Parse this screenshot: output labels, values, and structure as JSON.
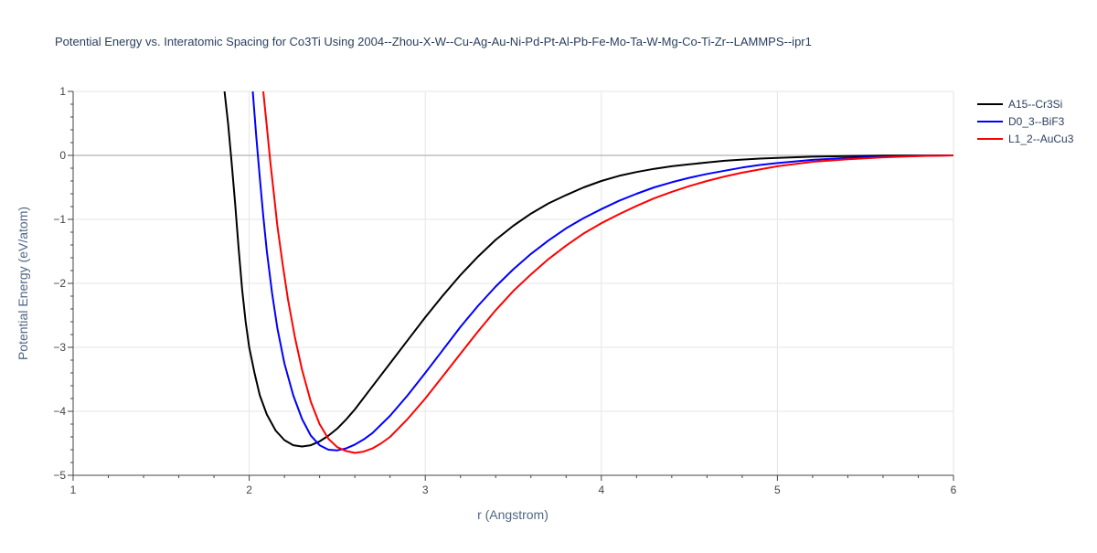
{
  "chart_data": {
    "type": "line",
    "title": "Potential Energy vs. Interatomic Spacing for Co3Ti Using 2004--Zhou-X-W--Cu-Ag-Au-Ni-Pd-Pt-Al-Pb-Fe-Mo-Ta-W-Mg-Co-Ti-Zr--LAMMPS--ipr1",
    "xlabel": "r (Angstrom)",
    "ylabel": "Potential Energy (eV/atom)",
    "xlim": [
      1,
      6
    ],
    "ylim": [
      -5,
      1
    ],
    "x_ticks": [
      1,
      2,
      3,
      4,
      5,
      6
    ],
    "y_ticks": [
      1,
      0,
      -1,
      -2,
      -3,
      -4,
      -5
    ],
    "x_tick_labels": [
      "1",
      "2",
      "3",
      "4",
      "5",
      "6"
    ],
    "y_tick_labels": [
      "1",
      "0",
      "−1",
      "−2",
      "−3",
      "−4",
      "−5"
    ],
    "grid": true,
    "legend_position": "top-right",
    "series": [
      {
        "name": "A15--Cr3Si",
        "color": "#000000",
        "x": [
          1.86,
          1.88,
          1.9,
          1.92,
          1.94,
          1.96,
          1.98,
          2.0,
          2.03,
          2.06,
          2.1,
          2.15,
          2.2,
          2.25,
          2.3,
          2.35,
          2.4,
          2.45,
          2.5,
          2.55,
          2.6,
          2.7,
          2.8,
          2.9,
          3.0,
          3.1,
          3.2,
          3.3,
          3.4,
          3.5,
          3.6,
          3.7,
          3.8,
          3.9,
          4.0,
          4.1,
          4.2,
          4.3,
          4.4,
          4.5,
          4.6,
          4.7,
          4.8,
          4.9,
          5.0,
          5.2,
          5.4,
          5.6,
          5.8,
          6.0
        ],
        "y": [
          1.0,
          0.5,
          -0.1,
          -0.75,
          -1.45,
          -2.1,
          -2.6,
          -3.0,
          -3.4,
          -3.75,
          -4.05,
          -4.3,
          -4.45,
          -4.53,
          -4.55,
          -4.53,
          -4.47,
          -4.38,
          -4.27,
          -4.13,
          -3.97,
          -3.61,
          -3.25,
          -2.89,
          -2.53,
          -2.19,
          -1.87,
          -1.58,
          -1.32,
          -1.1,
          -0.91,
          -0.75,
          -0.62,
          -0.5,
          -0.4,
          -0.32,
          -0.26,
          -0.21,
          -0.17,
          -0.14,
          -0.11,
          -0.085,
          -0.065,
          -0.05,
          -0.038,
          -0.02,
          -0.01,
          -0.005,
          -0.002,
          0.0
        ]
      },
      {
        "name": "D0_3--BiF3",
        "color": "#0000ff",
        "x": [
          2.02,
          2.04,
          2.06,
          2.08,
          2.1,
          2.13,
          2.16,
          2.2,
          2.25,
          2.3,
          2.35,
          2.4,
          2.45,
          2.5,
          2.55,
          2.6,
          2.65,
          2.7,
          2.8,
          2.9,
          3.0,
          3.1,
          3.2,
          3.3,
          3.4,
          3.5,
          3.6,
          3.7,
          3.8,
          3.9,
          4.0,
          4.1,
          4.2,
          4.3,
          4.4,
          4.5,
          4.6,
          4.7,
          4.8,
          4.9,
          5.0,
          5.2,
          5.4,
          5.6,
          5.8,
          6.0
        ],
        "y": [
          1.0,
          0.3,
          -0.35,
          -0.95,
          -1.5,
          -2.15,
          -2.7,
          -3.25,
          -3.75,
          -4.12,
          -4.38,
          -4.53,
          -4.6,
          -4.61,
          -4.58,
          -4.52,
          -4.44,
          -4.34,
          -4.07,
          -3.75,
          -3.4,
          -3.04,
          -2.68,
          -2.35,
          -2.05,
          -1.78,
          -1.54,
          -1.33,
          -1.14,
          -0.98,
          -0.84,
          -0.71,
          -0.6,
          -0.5,
          -0.42,
          -0.35,
          -0.29,
          -0.24,
          -0.19,
          -0.15,
          -0.12,
          -0.07,
          -0.04,
          -0.02,
          -0.008,
          0.0
        ]
      },
      {
        "name": "L1_2--AuCu3",
        "color": "#ff0000",
        "x": [
          2.08,
          2.1,
          2.12,
          2.14,
          2.16,
          2.19,
          2.22,
          2.26,
          2.3,
          2.35,
          2.4,
          2.45,
          2.5,
          2.55,
          2.6,
          2.65,
          2.7,
          2.75,
          2.8,
          2.9,
          3.0,
          3.1,
          3.2,
          3.3,
          3.4,
          3.5,
          3.6,
          3.7,
          3.8,
          3.9,
          4.0,
          4.1,
          4.2,
          4.3,
          4.4,
          4.5,
          4.6,
          4.7,
          4.8,
          4.9,
          5.0,
          5.2,
          5.4,
          5.6,
          5.8,
          6.0
        ],
        "y": [
          1.0,
          0.45,
          -0.1,
          -0.6,
          -1.1,
          -1.7,
          -2.25,
          -2.85,
          -3.35,
          -3.85,
          -4.2,
          -4.43,
          -4.56,
          -4.62,
          -4.65,
          -4.63,
          -4.58,
          -4.5,
          -4.4,
          -4.12,
          -3.8,
          -3.45,
          -3.1,
          -2.75,
          -2.42,
          -2.12,
          -1.86,
          -1.62,
          -1.41,
          -1.22,
          -1.06,
          -0.92,
          -0.79,
          -0.67,
          -0.57,
          -0.48,
          -0.4,
          -0.33,
          -0.27,
          -0.22,
          -0.17,
          -0.1,
          -0.06,
          -0.03,
          -0.012,
          0.0
        ]
      }
    ]
  }
}
